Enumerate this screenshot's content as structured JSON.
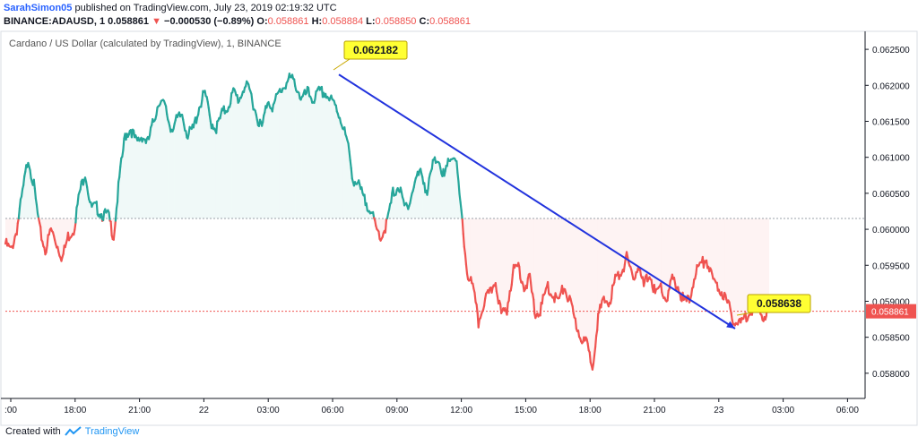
{
  "header": {
    "user": "SarahSimon05",
    "published": "published on TradingView.com, July 23, 2019 02:19:32 UTC",
    "symbol": "BINANCE:ADAUSD, 1",
    "last": "0.058861",
    "change_arrow": "▼",
    "change": "−0.000530 (−0.89%)",
    "o_label": "O:",
    "o": "0.058861",
    "h_label": "H:",
    "h": "0.058884",
    "l_label": "L:",
    "l": "0.058850",
    "c_label": "C:",
    "c": "0.058861"
  },
  "footer": {
    "created_with": "Created with",
    "brand": "TradingView",
    "icon": "tradingview-logo-icon"
  },
  "colors": {
    "up": "#26a69a",
    "down": "#ef5350",
    "arrow": "#2233dd",
    "label_bg": "#ffff33",
    "price_tag": "#ef5350"
  },
  "chart_data": {
    "type": "line",
    "title": "Cardano / US Dollar (calculated by TradingView), 1, BINANCE",
    "xlabel": "",
    "ylabel": "",
    "ylim": [
      0.05765,
      0.06275
    ],
    "x_ticks": [
      ":00",
      "18:00",
      "21:00",
      "22",
      "03:00",
      "06:00",
      "09:00",
      "12:00",
      "15:00",
      "18:00",
      "21:00",
      "23",
      "03:00",
      "06:00"
    ],
    "y_ticks": [
      "0.062500",
      "0.062000",
      "0.061500",
      "0.061000",
      "0.060500",
      "0.060000",
      "0.059500",
      "0.059000",
      "0.058500",
      "0.058000"
    ],
    "baseline": 0.06015,
    "last_price": "0.058861",
    "last_price_value": 0.058861,
    "grid": false,
    "series": [
      {
        "values": [
          0.0598,
          0.0597,
          0.06,
          0.0605,
          0.061,
          0.0606,
          0.06,
          0.0597,
          0.06,
          0.0598,
          0.0596,
          0.0599,
          0.06,
          0.0605,
          0.0608,
          0.0603,
          0.0603,
          0.0602,
          0.0602,
          0.0599,
          0.0607,
          0.0613,
          0.0614,
          0.0612,
          0.0613,
          0.0612,
          0.0615,
          0.0618,
          0.0617,
          0.0614,
          0.0615,
          0.0616,
          0.0613,
          0.0614,
          0.0617,
          0.0619,
          0.0615,
          0.0614,
          0.0616,
          0.0617,
          0.0619,
          0.0618,
          0.062,
          0.0619,
          0.0616,
          0.0614,
          0.0618,
          0.0617,
          0.0619,
          0.062,
          0.0621,
          0.062,
          0.0618,
          0.0619,
          0.0618,
          0.0619,
          0.0619,
          0.0618,
          0.0617,
          0.0615,
          0.0612,
          0.0607,
          0.0606,
          0.0604,
          0.0603,
          0.06,
          0.0599,
          0.0601,
          0.0605,
          0.0606,
          0.0603,
          0.0604,
          0.0607,
          0.0608,
          0.0605,
          0.0609,
          0.061,
          0.0607,
          0.061,
          0.061,
          0.0602,
          0.0594,
          0.0592,
          0.0587,
          0.059,
          0.0591,
          0.0593,
          0.0588,
          0.0589,
          0.0594,
          0.0595,
          0.0592,
          0.0593,
          0.0588,
          0.0589,
          0.0592,
          0.0591,
          0.059,
          0.0592,
          0.059,
          0.0587,
          0.0585,
          0.0584,
          0.0581,
          0.0588,
          0.059,
          0.059,
          0.0593,
          0.0594,
          0.0596,
          0.0593,
          0.0595,
          0.0592,
          0.0594,
          0.0591,
          0.0592,
          0.059,
          0.0593,
          0.0592,
          0.059,
          0.059,
          0.0594,
          0.0595,
          0.0596,
          0.0593,
          0.0592,
          0.0591,
          0.0589,
          0.0587,
          0.0587,
          0.0588,
          0.0589,
          0.0589,
          0.0588,
          0.0589
        ]
      }
    ]
  },
  "annotations": {
    "high_label": "0.062182",
    "low_label": "0.058638"
  }
}
